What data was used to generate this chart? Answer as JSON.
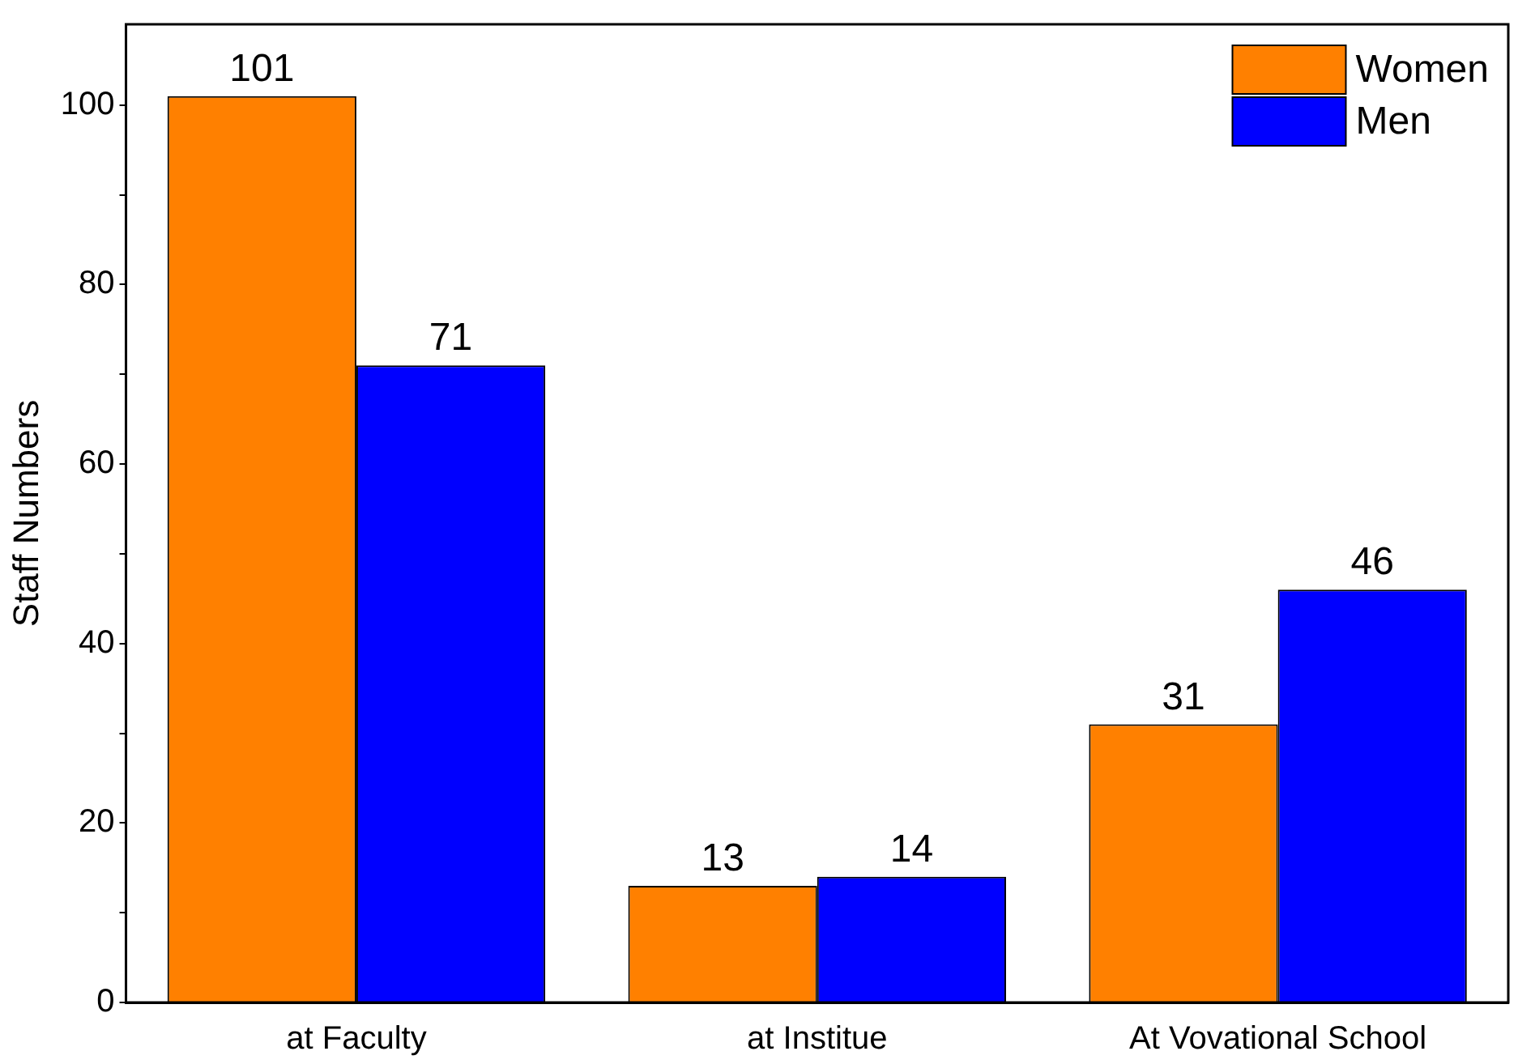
{
  "chart_data": {
    "type": "bar",
    "ylabel": "Staff Numbers",
    "categories": [
      "at Faculty",
      "at Institue",
      "At Vovational School"
    ],
    "series": [
      {
        "name": "Women",
        "color": "#ff8000",
        "values": [
          101,
          13,
          31
        ]
      },
      {
        "name": "Men",
        "color": "#0000ff",
        "values": [
          71,
          14,
          46
        ]
      }
    ],
    "ylim": [
      0,
      109
    ],
    "yticks": [
      0,
      {
        "value": 10,
        "label": null
      },
      20,
      {
        "value": 30,
        "label": null
      },
      40,
      {
        "value": 50,
        "label": null
      },
      60,
      {
        "value": 70,
        "label": null
      },
      80,
      {
        "value": 90,
        "label": null
      },
      100
    ],
    "data_labels": true,
    "legend": "top right",
    "grid": false
  }
}
